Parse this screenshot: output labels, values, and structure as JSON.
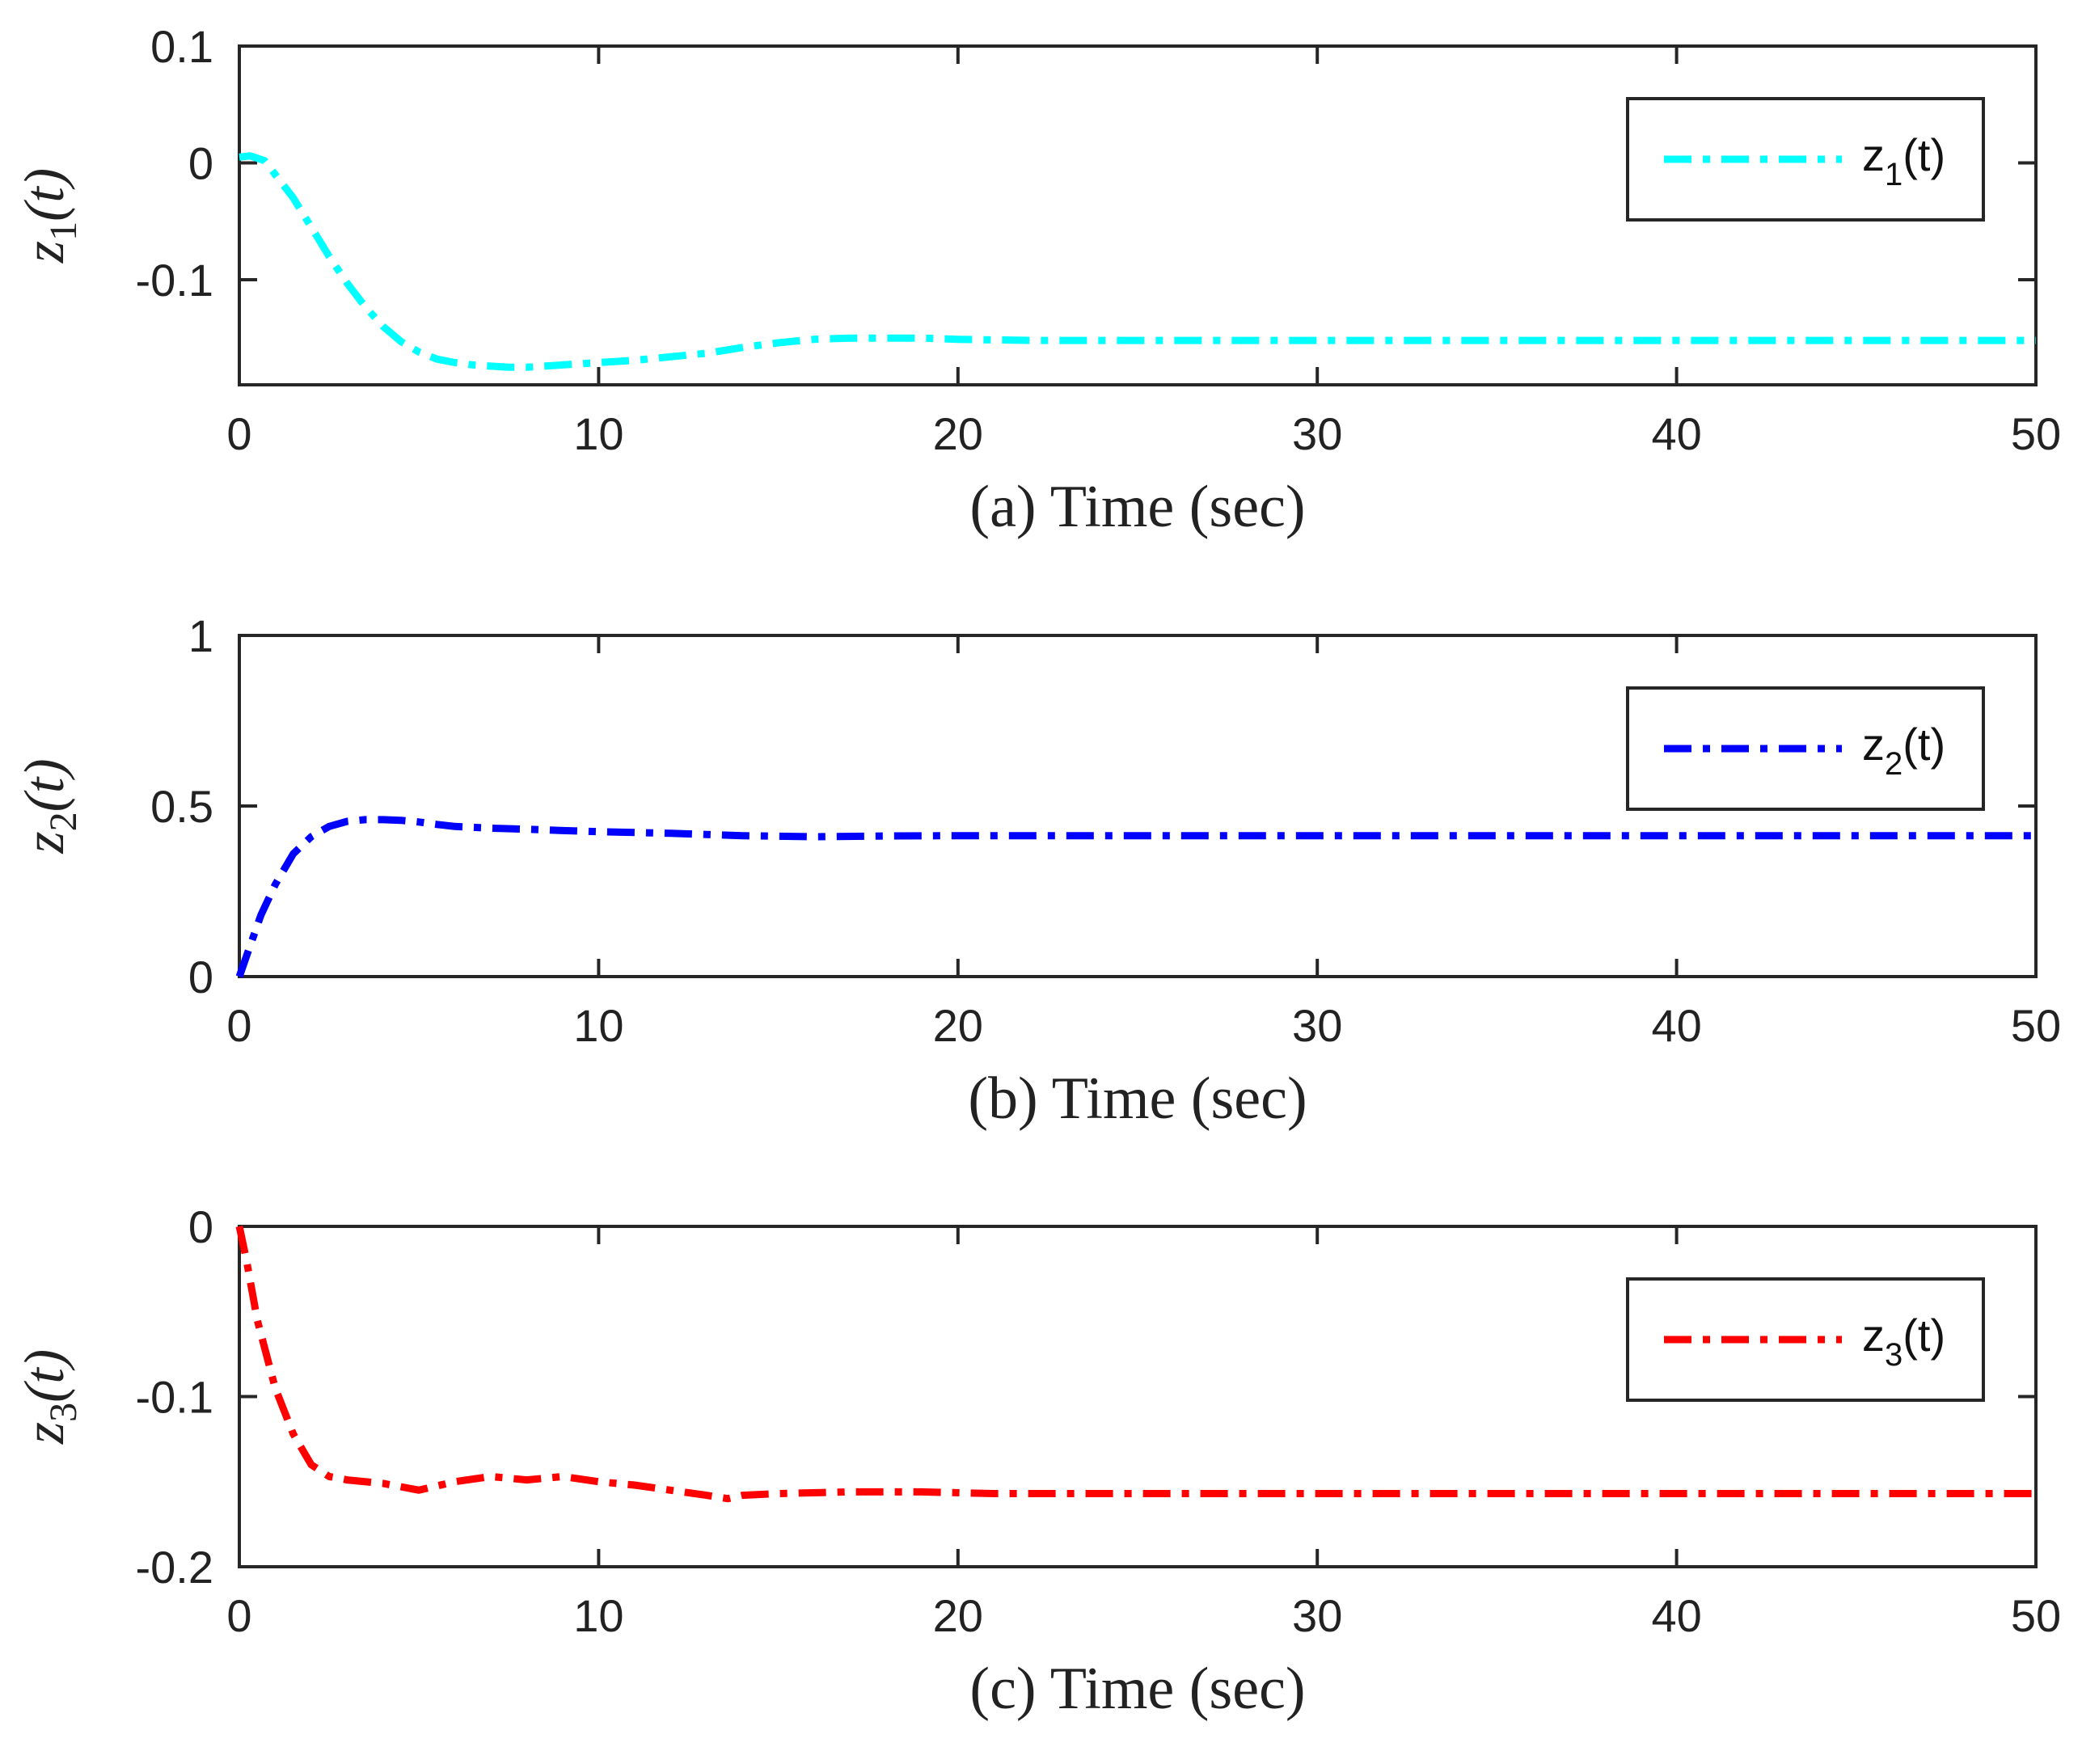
{
  "chart_data": [
    {
      "type": "line",
      "panel": "a",
      "xlabel": "(a) Time (sec)",
      "ylabel_base": "z",
      "ylabel_sub": "1",
      "ylabel_arg": "(t)",
      "xlim": [
        0,
        50
      ],
      "ylim": [
        -0.19,
        0.1
      ],
      "xticks": [
        0,
        10,
        20,
        30,
        40,
        50
      ],
      "xtick_labels": [
        "0",
        "10",
        "20",
        "30",
        "40",
        "50"
      ],
      "yticks": [
        -0.1,
        0,
        0.1
      ],
      "ytick_labels": [
        "-0.1",
        "0",
        "0.1"
      ],
      "legend_position": "top-right",
      "series": [
        {
          "name": "z1(t)",
          "legend_base": "z",
          "legend_sub": "1",
          "legend_arg": "(t)",
          "color": "#00FFFF",
          "style": "dashdot",
          "x": [
            0,
            0.3,
            0.7,
            1,
            1.5,
            2,
            2.5,
            3,
            3.5,
            4,
            4.5,
            5,
            5.5,
            6,
            6.5,
            7,
            7.5,
            8,
            8.5,
            9,
            10,
            11,
            12,
            13,
            14,
            15,
            16,
            17,
            18,
            19,
            20,
            22,
            25,
            30,
            35,
            40,
            45,
            50
          ],
          "y": [
            0.005,
            0.006,
            0.002,
            -0.01,
            -0.03,
            -0.055,
            -0.08,
            -0.103,
            -0.123,
            -0.14,
            -0.153,
            -0.162,
            -0.168,
            -0.171,
            -0.173,
            -0.174,
            -0.175,
            -0.175,
            -0.174,
            -0.173,
            -0.171,
            -0.169,
            -0.166,
            -0.163,
            -0.158,
            -0.154,
            -0.151,
            -0.15,
            -0.15,
            -0.15,
            -0.151,
            -0.152,
            -0.152,
            -0.152,
            -0.152,
            -0.152,
            -0.152,
            -0.152
          ]
        }
      ]
    },
    {
      "type": "line",
      "panel": "b",
      "xlabel": "(b) Time (sec)",
      "ylabel_base": "z",
      "ylabel_sub": "2",
      "ylabel_arg": "(t)",
      "xlim": [
        0,
        50
      ],
      "ylim": [
        0,
        1
      ],
      "xticks": [
        0,
        10,
        20,
        30,
        40,
        50
      ],
      "xtick_labels": [
        "0",
        "10",
        "20",
        "30",
        "40",
        "50"
      ],
      "yticks": [
        0,
        0.5,
        1
      ],
      "ytick_labels": [
        "0",
        "0.5",
        "1"
      ],
      "legend_position": "top-right",
      "series": [
        {
          "name": "z2(t)",
          "legend_base": "z",
          "legend_sub": "2",
          "legend_arg": "(t)",
          "color": "#0000FF",
          "style": "dashdot",
          "x": [
            0,
            0.3,
            0.6,
            1,
            1.5,
            2,
            2.5,
            3,
            3.5,
            4,
            4.5,
            5,
            5.5,
            6,
            7,
            8,
            9,
            10,
            12,
            14,
            16,
            18,
            20,
            25,
            30,
            35,
            40,
            45,
            50
          ],
          "y": [
            0,
            0.09,
            0.18,
            0.27,
            0.36,
            0.41,
            0.44,
            0.455,
            0.46,
            0.46,
            0.458,
            0.453,
            0.446,
            0.44,
            0.435,
            0.432,
            0.428,
            0.425,
            0.42,
            0.413,
            0.41,
            0.412,
            0.413,
            0.413,
            0.413,
            0.413,
            0.413,
            0.413,
            0.413
          ]
        }
      ]
    },
    {
      "type": "line",
      "panel": "c",
      "xlabel": "(c) Time (sec)",
      "ylabel_base": "z",
      "ylabel_sub": "3",
      "ylabel_arg": "(t)",
      "xlim": [
        0,
        50
      ],
      "ylim": [
        -0.2,
        0
      ],
      "xticks": [
        0,
        10,
        20,
        30,
        40,
        50
      ],
      "xtick_labels": [
        "0",
        "10",
        "20",
        "30",
        "40",
        "50"
      ],
      "yticks": [
        -0.2,
        -0.1,
        0
      ],
      "ytick_labels": [
        "-0.2",
        "-0.1",
        "0"
      ],
      "legend_position": "top-right",
      "series": [
        {
          "name": "z3(t)",
          "legend_base": "z",
          "legend_sub": "3",
          "legend_arg": "(t)",
          "color": "#FF0000",
          "style": "dashdot",
          "x": [
            0,
            0.2,
            0.5,
            1,
            1.5,
            2,
            2.5,
            3,
            4,
            5,
            6,
            7,
            8,
            9,
            10,
            11,
            12,
            13,
            13.6,
            14,
            15,
            17,
            19,
            21,
            25,
            30,
            35,
            40,
            45,
            50
          ],
          "y": [
            0,
            -0.02,
            -0.055,
            -0.095,
            -0.122,
            -0.14,
            -0.147,
            -0.149,
            -0.151,
            -0.155,
            -0.15,
            -0.147,
            -0.149,
            -0.147,
            -0.15,
            -0.152,
            -0.155,
            -0.158,
            -0.16,
            -0.158,
            -0.157,
            -0.156,
            -0.156,
            -0.157,
            -0.157,
            -0.157,
            -0.157,
            -0.157,
            -0.157,
            -0.157
          ]
        }
      ]
    }
  ]
}
